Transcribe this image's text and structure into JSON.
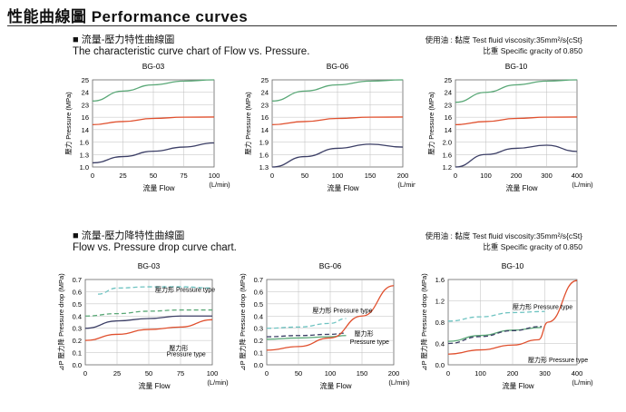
{
  "page": {
    "title": "性能曲線圖  Performance curves",
    "section1": {
      "title_zh": "■ 流量-壓力特性曲線圖",
      "title_en": "The characteristic curve chart of Flow vs. Pressure.",
      "note_line1": "使用油 : 黏度 Test fluid viscosity:35mm²/s{cSt}",
      "note_line2": "比重 Specific gracity of 0.850"
    },
    "section2": {
      "title_zh": "■ 流量-壓力降特性曲線圖",
      "title_en": "Flow vs. Pressure drop curve chart.",
      "note_line1": "使用油 : 黏度 Test fluid viscosity:35mm²/s{cSt}",
      "note_line2": "比重 Specific gracity of 0.850"
    }
  },
  "chart_data": [
    {
      "type": "line",
      "title": "BG-03",
      "xlabel": "流量  Flow",
      "xunit": "(L/min)",
      "ylabel": "壓力  Pressure (MPa)",
      "xlim": [
        0,
        100
      ],
      "x_ticks": [
        0,
        25,
        50,
        75,
        100
      ],
      "y_ticks": [
        "1.0",
        "1.3",
        "1.6",
        "14",
        "16",
        "23",
        "24",
        "25"
      ],
      "series": [
        {
          "color": "#5aa877",
          "level": 7.55,
          "x": [
            0,
            25,
            50,
            75,
            100
          ],
          "y": [
            23.3,
            24.1,
            24.6,
            24.9,
            25.0
          ]
        },
        {
          "color": "#e0502e",
          "level": 4.2,
          "x": [
            0,
            25,
            50,
            75,
            100
          ],
          "y": [
            14.8,
            15.3,
            15.8,
            16.0,
            16.1
          ]
        },
        {
          "color": "#3c3f66",
          "level": 1.2,
          "x": [
            0,
            25,
            50,
            75,
            100
          ],
          "y": [
            1.1,
            1.25,
            1.38,
            1.48,
            1.58
          ]
        }
      ]
    },
    {
      "type": "line",
      "title": "BG-06",
      "xlabel": "流量  Flow",
      "xunit": "(L/min)",
      "ylabel": "壓力  Pressure (MPa)",
      "xlim": [
        0,
        200
      ],
      "x_ticks": [
        0,
        50,
        100,
        150,
        200
      ],
      "y_ticks": [
        "1.3",
        "1.6",
        "1.9",
        "14",
        "16",
        "23",
        "24",
        "25"
      ],
      "series": [
        {
          "color": "#5aa877",
          "x": [
            0,
            50,
            100,
            150,
            200
          ],
          "y": [
            23.3,
            24.1,
            24.6,
            24.9,
            25.1
          ]
        },
        {
          "color": "#e0502e",
          "x": [
            0,
            50,
            100,
            150,
            200
          ],
          "y": [
            14.8,
            15.3,
            15.8,
            16.0,
            16.1
          ]
        },
        {
          "color": "#3c3f66",
          "x": [
            0,
            50,
            100,
            150,
            200
          ],
          "y": [
            1.3,
            1.55,
            1.75,
            1.85,
            1.78
          ]
        }
      ]
    },
    {
      "type": "line",
      "title": "BG-10",
      "xlabel": "流量  Flow",
      "xunit": "(L/min)",
      "ylabel": "壓力  Pressure (MPa)",
      "xlim": [
        0,
        400
      ],
      "x_ticks": [
        0,
        100,
        200,
        300,
        400
      ],
      "y_ticks": [
        "1.2",
        "1.6",
        "2.0",
        "14",
        "16",
        "23",
        "24",
        "25"
      ],
      "series": [
        {
          "color": "#5aa877",
          "x": [
            0,
            100,
            200,
            300,
            400
          ],
          "y": [
            23.2,
            24.0,
            24.6,
            24.9,
            25.0
          ]
        },
        {
          "color": "#e0502e",
          "x": [
            0,
            100,
            200,
            300,
            400
          ],
          "y": [
            14.8,
            15.3,
            15.8,
            16.0,
            16.1
          ]
        },
        {
          "color": "#3c3f66",
          "x": [
            0,
            100,
            200,
            300,
            400
          ],
          "y": [
            1.2,
            1.6,
            1.8,
            1.9,
            1.7
          ]
        }
      ]
    },
    {
      "type": "line",
      "title": "BG-03",
      "xlabel": "流量  Flow",
      "xunit": "(L/min)",
      "ylabel": "⊿P 壓力降  Pressure drop (MPa)",
      "xlim": [
        0,
        100
      ],
      "ylim": [
        0,
        0.7
      ],
      "x_ticks": [
        0,
        25,
        50,
        75,
        100
      ],
      "y_ticks": [
        "0.0",
        "0.1",
        "0.2",
        "0.3",
        "0.4",
        "0.5",
        "0.6",
        "0.7"
      ],
      "annotations": [
        {
          "text": "壓力形 Pressure type",
          "x": 55,
          "y": 0.6
        },
        {
          "text": "壓力形",
          "x": 66,
          "y": 0.12
        },
        {
          "text": "Pressure type",
          "x": 64,
          "y": 0.07
        }
      ],
      "series": [
        {
          "color": "#6ec3c1",
          "dash": true,
          "x": [
            10,
            25,
            50,
            75,
            100
          ],
          "y": [
            0.58,
            0.63,
            0.64,
            0.64,
            0.63
          ]
        },
        {
          "color": "#5aa877",
          "dash": true,
          "x": [
            0,
            25,
            50,
            75,
            100
          ],
          "y": [
            0.4,
            0.42,
            0.44,
            0.45,
            0.45
          ]
        },
        {
          "color": "#3c3f66",
          "x": [
            0,
            25,
            50,
            75,
            100
          ],
          "y": [
            0.3,
            0.36,
            0.38,
            0.4,
            0.4
          ]
        },
        {
          "color": "#e0502e",
          "x": [
            0,
            25,
            50,
            75,
            100
          ],
          "y": [
            0.2,
            0.25,
            0.29,
            0.31,
            0.37
          ]
        }
      ]
    },
    {
      "type": "line",
      "title": "BG-06",
      "xlabel": "流量  Flow",
      "xunit": "(L/min)",
      "ylabel": "⊿P 壓力降  Pressure drop (MPa)",
      "xlim": [
        0,
        200
      ],
      "ylim": [
        0,
        0.7
      ],
      "x_ticks": [
        0,
        50,
        100,
        150,
        200
      ],
      "y_ticks": [
        "0.0",
        "0.1",
        "0.2",
        "0.3",
        "0.4",
        "0.5",
        "0.6",
        "0.7"
      ],
      "annotations": [
        {
          "text": "壓力形 Pressure type",
          "x": 72,
          "y": 0.43
        },
        {
          "text": "壓力形",
          "x": 138,
          "y": 0.24
        },
        {
          "text": "Pressure type",
          "x": 131,
          "y": 0.17
        }
      ],
      "series": [
        {
          "color": "#6ec3c1",
          "dash": true,
          "x": [
            0,
            50,
            100,
            125
          ],
          "y": [
            0.3,
            0.31,
            0.34,
            0.38
          ]
        },
        {
          "color": "#3c3f66",
          "dash": true,
          "x": [
            0,
            50,
            100,
            125
          ],
          "y": [
            0.23,
            0.24,
            0.25,
            0.26
          ]
        },
        {
          "color": "#5aa877",
          "x": [
            0,
            50,
            100,
            125
          ],
          "y": [
            0.21,
            0.22,
            0.23,
            0.24
          ]
        },
        {
          "color": "#e0502e",
          "x": [
            0,
            50,
            100,
            150,
            200
          ],
          "y": [
            0.12,
            0.15,
            0.22,
            0.4,
            0.65
          ]
        }
      ]
    },
    {
      "type": "line",
      "title": "BG-10",
      "xlabel": "流量  Flow",
      "xunit": "(L/min)",
      "ylabel": "⊿P 壓力降  Pressure drop (MPa)",
      "xlim": [
        0,
        400
      ],
      "ylim": [
        0,
        1.6
      ],
      "x_ticks": [
        0,
        100,
        200,
        300,
        400
      ],
      "y_ticks": [
        "0.0",
        "0.4",
        "0.8",
        "1.2",
        "1.6"
      ],
      "annotations": [
        {
          "text": "壓力形 Pressure type",
          "x": 200,
          "y": 1.05
        },
        {
          "text": "壓力形 Pressure type",
          "x": 248,
          "y": 0.05
        }
      ],
      "series": [
        {
          "color": "#6ec3c1",
          "dash": true,
          "x": [
            0,
            100,
            200,
            300
          ],
          "y": [
            0.82,
            0.9,
            0.98,
            1.0
          ]
        },
        {
          "color": "#5aa877",
          "x": [
            0,
            100,
            200,
            290
          ],
          "y": [
            0.44,
            0.55,
            0.65,
            0.7
          ]
        },
        {
          "color": "#3c3f66",
          "dash": true,
          "x": [
            0,
            100,
            200,
            290
          ],
          "y": [
            0.4,
            0.53,
            0.64,
            0.72
          ]
        },
        {
          "color": "#e0502e",
          "x": [
            0,
            100,
            200,
            280,
            310,
            400
          ],
          "y": [
            0.2,
            0.28,
            0.37,
            0.47,
            0.8,
            1.58
          ]
        }
      ]
    }
  ]
}
